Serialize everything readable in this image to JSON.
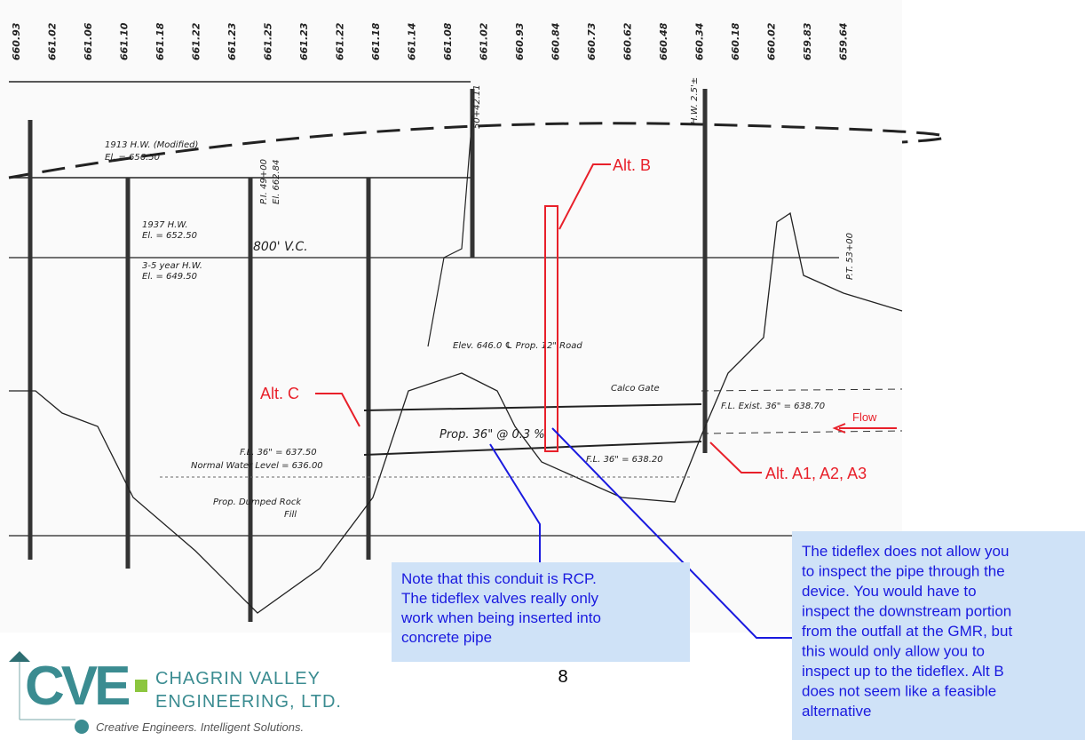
{
  "drawing": {
    "elevations": [
      "660.93",
      "661.02",
      "661.06",
      "661.10",
      "661.18",
      "661.22",
      "661.23",
      "661.25",
      "661.23",
      "661.22",
      "661.18",
      "661.14",
      "661.08",
      "661.02",
      "660.93",
      "660.84",
      "660.73",
      "660.62",
      "660.48",
      "660.34",
      "660.18",
      "660.02",
      "659.83",
      "659.64"
    ],
    "labels": {
      "hw1913": "1913 H.W. (Modified)",
      "hw1913_el": "El. = 656.50",
      "hw1937": "1937 H.W.",
      "hw1937_el": "El. = 652.50",
      "hw35": "3-5 year H.W.",
      "hw35_el": "El. = 649.50",
      "vc": "800' V.C.",
      "pt": "P.T. 53+00",
      "pi": "P.I. 49+00",
      "pi_el": "El. 662.84",
      "sta": "50+42.11",
      "hw": "H.W. 2.5'±",
      "road": "Elev. 646.0 ℄ Prop. 12\" Road",
      "gate": "Calco Gate",
      "prop": "Prop. 36\" @ 0.3 %",
      "fl_exist": "F.L. Exist. 36\" = 638.70",
      "fl_left": "F.L. 36\" = 637.50",
      "nwl": "Normal Water Level = 636.00",
      "fl_right": "F.L. 36\" = 638.20",
      "rock1": "Prop. Dumped Rock",
      "rock2": "Fill"
    }
  },
  "callouts": {
    "alt_b": "Alt. B",
    "alt_c": "Alt. C",
    "alt_a": "Alt. A1, A2, A3",
    "flow": "Flow"
  },
  "notes": [
    [
      "Note that this conduit is RCP.",
      "The tideflex valves really only",
      "work when being inserted into",
      "concrete pipe"
    ],
    [
      "The tideflex does not allow you",
      "to inspect the pipe through the",
      "device. You would have to",
      "inspect the downstream portion",
      "from the outfall at the GMR, but",
      "this would only allow you to",
      "inspect up to the tideflex. Alt B",
      "does not seem like a feasible",
      "alternative"
    ]
  ],
  "page_number": "8",
  "logo": {
    "mark": "CVE",
    "line1": "CHAGRIN VALLEY",
    "line2": "ENGINEERING, LTD.",
    "tagline": "Creative Engineers. Intelligent Solutions."
  }
}
